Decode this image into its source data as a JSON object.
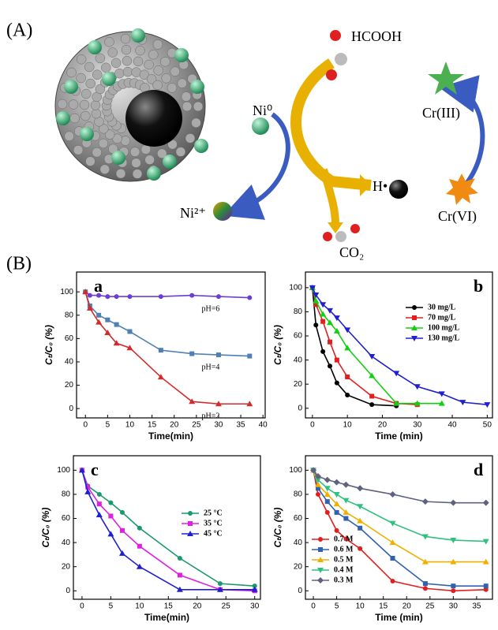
{
  "figure_labels": {
    "A": "(A)",
    "B": "(B)"
  },
  "diagram": {
    "hcooh": "HCOOH",
    "ni0": "Ni⁰",
    "cr3": "Cr(III)",
    "h": "H•",
    "ni2": "Ni²⁺",
    "cr6": "Cr(VI)",
    "co2": "CO₂"
  },
  "chart_data": [
    {
      "type": "line",
      "title": "a",
      "xlabel": "Time(min)",
      "ylabel": "Cₜ/C₀ (%)",
      "xlim": [
        -2,
        40.5
      ],
      "ylim": [
        -8,
        117
      ],
      "xticks": [
        0,
        5,
        10,
        15,
        20,
        25,
        30,
        35,
        40
      ],
      "yticks": [
        0,
        20,
        40,
        60,
        80,
        100
      ],
      "legend": "inline",
      "series": [
        {
          "name": "pH=6",
          "color": "#6a3fd0",
          "x": [
            0,
            1,
            3,
            5,
            7,
            10,
            17,
            24,
            30,
            37
          ],
          "values": [
            100,
            97,
            97,
            96,
            96,
            96,
            96,
            97,
            96,
            95
          ]
        },
        {
          "name": "pH=4",
          "color": "#4f7fb5",
          "x": [
            0,
            1,
            3,
            5,
            7,
            10,
            17,
            24,
            30,
            37
          ],
          "values": [
            100,
            88,
            80,
            76,
            72,
            66,
            50,
            47,
            46,
            45
          ]
        },
        {
          "name": "pH=2",
          "color": "#d42a2a",
          "x": [
            0,
            1,
            3,
            5,
            7,
            10,
            17,
            24,
            30,
            37
          ],
          "values": [
            100,
            86,
            74,
            65,
            56,
            52,
            27,
            6,
            4,
            4
          ]
        }
      ]
    },
    {
      "type": "line",
      "title": "b",
      "xlabel": "Time (min)",
      "ylabel": "Cₜ/C₀ (%)",
      "xlim": [
        -2,
        51.5
      ],
      "ylim": [
        -8,
        113
      ],
      "xticks": [
        0,
        10,
        20,
        30,
        40,
        50
      ],
      "yticks": [
        0,
        20,
        40,
        60,
        80,
        100
      ],
      "legend": "upper right",
      "series": [
        {
          "name": "30  mg/L",
          "color": "#000000",
          "x": [
            0,
            1,
            3,
            5,
            7,
            10,
            17,
            24
          ],
          "values": [
            100,
            69,
            47,
            35,
            21,
            11,
            3,
            2
          ]
        },
        {
          "name": "70  mg/L",
          "color": "#e02020",
          "x": [
            0,
            1,
            3,
            5,
            7,
            10,
            17,
            24,
            30
          ],
          "values": [
            100,
            86,
            72,
            55,
            40,
            26,
            10,
            4,
            3
          ]
        },
        {
          "name": "100 mg/L",
          "color": "#10d010",
          "x": [
            0,
            1,
            3,
            5,
            7,
            10,
            17,
            24,
            30,
            37
          ],
          "values": [
            100,
            89,
            78,
            71,
            64,
            50,
            27,
            4,
            4,
            4
          ]
        },
        {
          "name": "130 mg/L",
          "color": "#2020d0",
          "x": [
            0,
            1,
            3,
            5,
            7,
            10,
            17,
            24,
            30,
            37,
            43,
            50
          ],
          "values": [
            100,
            94,
            86,
            81,
            75,
            65,
            43,
            29,
            18,
            12,
            5,
            3
          ]
        }
      ]
    },
    {
      "type": "line",
      "title": "c",
      "xlabel": "Time(min)",
      "ylabel": "Cₜ/C₀ (%)",
      "xlim": [
        -1.5,
        31
      ],
      "ylim": [
        -7,
        112
      ],
      "xticks": [
        0,
        5,
        10,
        15,
        20,
        25,
        30
      ],
      "yticks": [
        0,
        20,
        40,
        60,
        80,
        100
      ],
      "legend": "center right",
      "series": [
        {
          "name": "25 °C",
          "color": "#1a9a6a",
          "x": [
            0,
            1,
            3,
            5,
            7,
            10,
            17,
            24,
            30
          ],
          "values": [
            100,
            87,
            80,
            73,
            65,
            52,
            27,
            6,
            4
          ]
        },
        {
          "name": "35 °C",
          "color": "#e020e0",
          "x": [
            0,
            1,
            3,
            5,
            7,
            10,
            17,
            24,
            30
          ],
          "values": [
            100,
            86,
            72,
            62,
            50,
            37,
            13,
            1,
            0
          ]
        },
        {
          "name": "45 °C",
          "color": "#2020d0",
          "x": [
            0,
            1,
            3,
            5,
            7,
            10,
            17,
            24,
            30
          ],
          "values": [
            100,
            82,
            63,
            47,
            31,
            20,
            1,
            1,
            1
          ]
        }
      ]
    },
    {
      "type": "line",
      "title": "d",
      "xlabel": "Time (min)",
      "ylabel": "Cₜ/C₀ (%)",
      "xlim": [
        -1.7,
        38.4
      ],
      "ylim": [
        -7,
        112
      ],
      "xticks": [
        0,
        5,
        10,
        15,
        20,
        25,
        30,
        35
      ],
      "yticks": [
        0,
        20,
        40,
        60,
        80,
        100
      ],
      "legend": "lower left",
      "series": [
        {
          "name": "0.7 M",
          "color": "#e02020",
          "x": [
            0,
            1,
            3,
            5,
            7,
            10,
            17,
            24,
            30,
            37
          ],
          "values": [
            100,
            80,
            65,
            50,
            43,
            35,
            8,
            2,
            0,
            1
          ]
        },
        {
          "name": "0.6 M",
          "color": "#3060b0",
          "x": [
            0,
            1,
            3,
            5,
            7,
            10,
            17,
            24,
            30,
            37
          ],
          "values": [
            100,
            85,
            74,
            65,
            60,
            52,
            27,
            6,
            4,
            4
          ]
        },
        {
          "name": "0.5 M",
          "color": "#f0b000",
          "x": [
            0,
            1,
            3,
            5,
            7,
            10,
            17,
            24,
            30,
            37
          ],
          "values": [
            100,
            88,
            80,
            72,
            65,
            58,
            40,
            24,
            24,
            24
          ]
        },
        {
          "name": "0.4 M",
          "color": "#30c080",
          "x": [
            0,
            1,
            3,
            5,
            7,
            10,
            17,
            24,
            30,
            37
          ],
          "values": [
            100,
            92,
            85,
            80,
            75,
            70,
            56,
            45,
            42,
            41
          ]
        },
        {
          "name": "0.3 M",
          "color": "#606080",
          "x": [
            0,
            1,
            3,
            5,
            7,
            10,
            17,
            24,
            30,
            37
          ],
          "values": [
            100,
            95,
            92,
            90,
            88,
            85,
            80,
            74,
            73,
            73
          ]
        }
      ]
    }
  ]
}
